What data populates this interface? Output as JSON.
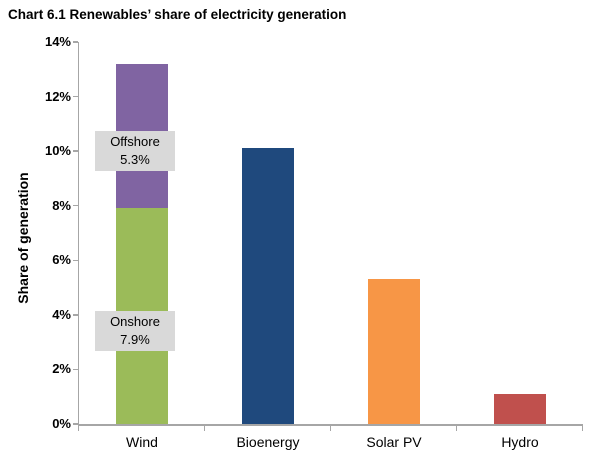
{
  "chart_data": {
    "type": "bar",
    "stacked": true,
    "title": "Chart 6.1 Renewables’ share of electricity generation",
    "ylabel": "Share of generation",
    "xlabel": "",
    "ylim": [
      0,
      14
    ],
    "ytick_step": 2,
    "yticks": [
      "0%",
      "2%",
      "4%",
      "6%",
      "8%",
      "10%",
      "12%",
      "14%"
    ],
    "gridlines": false,
    "legend": "none",
    "axis_color": "#a6a6a6",
    "annotation_bg": "#d9d9d9",
    "categories": [
      "Wind",
      "Bioenergy",
      "Solar PV",
      "Hydro"
    ],
    "bars": [
      {
        "category": "Wind",
        "segments": [
          {
            "name": "Onshore",
            "value": 7.9,
            "color": "#9bbb59",
            "label": {
              "line1": "Onshore",
              "line2": "7.9%"
            }
          },
          {
            "name": "Offshore",
            "value": 5.3,
            "color": "#8064a2",
            "label": {
              "line1": "Offshore",
              "line2": "5.3%"
            }
          }
        ]
      },
      {
        "category": "Bioenergy",
        "segments": [
          {
            "name": "Bioenergy",
            "value": 10.1,
            "color": "#1f497d"
          }
        ]
      },
      {
        "category": "Solar PV",
        "segments": [
          {
            "name": "Solar PV",
            "value": 5.3,
            "color": "#f79646"
          }
        ]
      },
      {
        "category": "Hydro",
        "segments": [
          {
            "name": "Hydro",
            "value": 1.1,
            "color": "#c0504d"
          }
        ]
      }
    ]
  }
}
